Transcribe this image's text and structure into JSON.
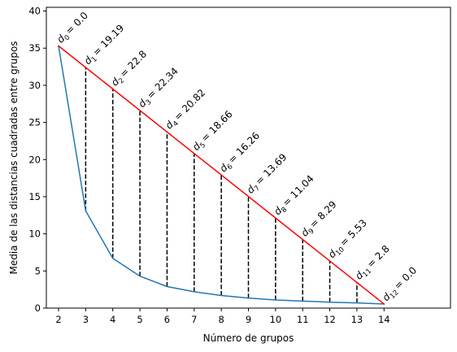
{
  "chart_data": {
    "type": "line",
    "title": "",
    "xlabel": "Número de grupos",
    "ylabel": "Media de las distancias cuadradas entre grupos",
    "xlim": [
      1.55,
      16.45
    ],
    "ylim": [
      0,
      40.5
    ],
    "xticks": [
      2,
      3,
      4,
      5,
      6,
      7,
      8,
      9,
      10,
      11,
      12,
      13,
      14
    ],
    "yticks": [
      0,
      5,
      10,
      15,
      20,
      25,
      30,
      35,
      40
    ],
    "grid": false,
    "legend": "none",
    "series": [
      {
        "color": "#1f77b4",
        "x": [
          2,
          3,
          4,
          5,
          6,
          7,
          8,
          9,
          10,
          11,
          12,
          13,
          14
        ],
        "y": [
          35.3,
          13.1,
          6.7,
          4.3,
          2.9,
          2.2,
          1.7,
          1.35,
          1.1,
          0.95,
          0.8,
          0.7,
          0.55
        ]
      },
      {
        "color": "#ff0000",
        "x": [
          2,
          14
        ],
        "y": [
          35.3,
          0.55
        ]
      }
    ],
    "distances": [
      {
        "x": 2,
        "name": "d",
        "sub": "0",
        "value_text": "= 0.0"
      },
      {
        "x": 3,
        "name": "d",
        "sub": "1",
        "value_text": "= 19.19"
      },
      {
        "x": 4,
        "name": "d",
        "sub": "2",
        "value_text": "= 22.8"
      },
      {
        "x": 5,
        "name": "d",
        "sub": "3",
        "value_text": "= 22.34"
      },
      {
        "x": 6,
        "name": "d",
        "sub": "4",
        "value_text": "= 20.82"
      },
      {
        "x": 7,
        "name": "d",
        "sub": "5",
        "value_text": "= 18.66"
      },
      {
        "x": 8,
        "name": "d",
        "sub": "6",
        "value_text": "= 16.26"
      },
      {
        "x": 9,
        "name": "d",
        "sub": "7",
        "value_text": "= 13.69"
      },
      {
        "x": 10,
        "name": "d",
        "sub": "8",
        "value_text": "= 11.04"
      },
      {
        "x": 11,
        "name": "d",
        "sub": "9",
        "value_text": "= 8.29"
      },
      {
        "x": 12,
        "name": "d",
        "sub": "10",
        "value_text": "= 5.53"
      },
      {
        "x": 13,
        "name": "d",
        "sub": "11",
        "value_text": "= 2.8"
      },
      {
        "x": 14,
        "name": "d",
        "sub": "12",
        "value_text": "= 0.0"
      }
    ]
  }
}
